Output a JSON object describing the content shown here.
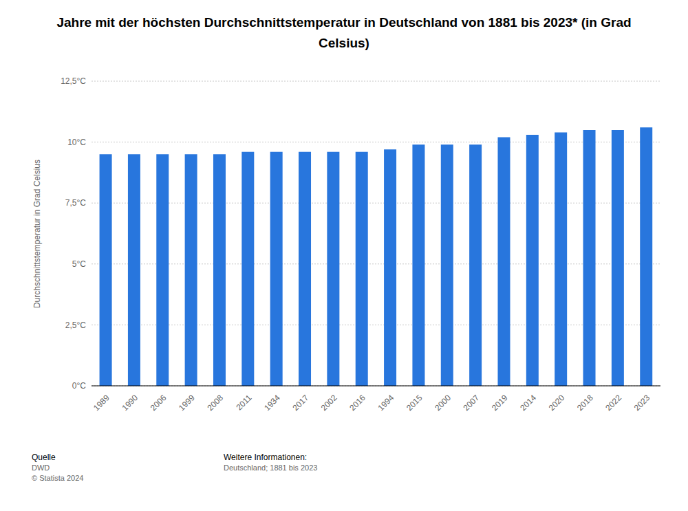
{
  "chart_data": {
    "type": "bar",
    "title": "Jahre mit der höchsten Durchschnittstemperatur in Deutschland von 1881 bis 2023* (in Grad Celsius)",
    "y_label": "Durchschnittstemperatur in Grad Celsius",
    "categories": [
      "1989",
      "1990",
      "2006",
      "1999",
      "2008",
      "2011",
      "1934",
      "2017",
      "2002",
      "2016",
      "1994",
      "2015",
      "2000",
      "2007",
      "2019",
      "2014",
      "2020",
      "2018",
      "2022",
      "2023"
    ],
    "values": [
      9.5,
      9.5,
      9.5,
      9.5,
      9.5,
      9.6,
      9.6,
      9.6,
      9.6,
      9.6,
      9.7,
      9.9,
      9.9,
      9.9,
      10.2,
      10.3,
      10.4,
      10.5,
      10.5,
      10.6
    ],
    "color": "#2876dd",
    "ylim": [
      0,
      12.5
    ],
    "yticks": [
      {
        "value": 0,
        "label": "0°C"
      },
      {
        "value": 2.5,
        "label": "2,5°C"
      },
      {
        "value": 5,
        "label": "5°C"
      },
      {
        "value": 7.5,
        "label": "7,5°C"
      },
      {
        "value": 10,
        "label": "10°C"
      },
      {
        "value": 12.5,
        "label": "12,5°C"
      }
    ],
    "grid": true,
    "source": {
      "label": "Quelle",
      "name": "DWD",
      "copyright": "© Statista 2024"
    },
    "info": {
      "label": "Weitere Informationen:",
      "text": "Deutschland; 1881 bis 2023"
    }
  }
}
